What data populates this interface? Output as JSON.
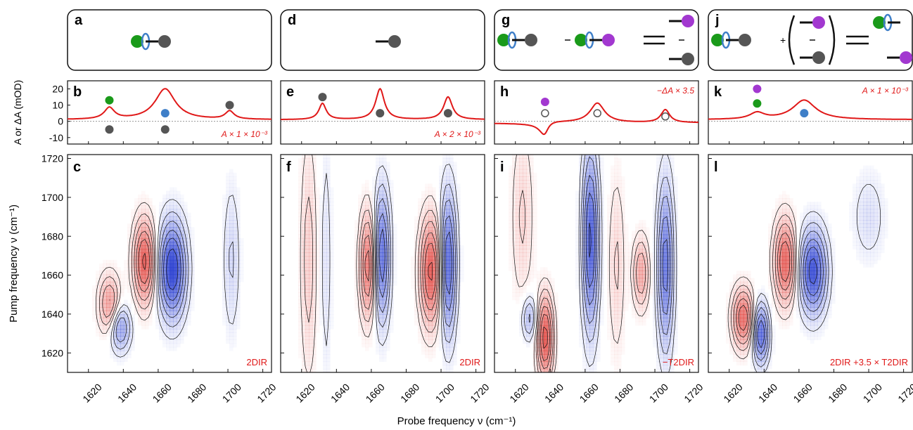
{
  "figure": {
    "x_axis_label": "Probe frequency ν (cm⁻¹)",
    "y_axis_label_top": "A or ΔA (mOD)",
    "y_axis_label_bottom": "Pump frequency ν (cm⁻¹)"
  },
  "colors": {
    "spectrum": "#e01818",
    "green": "#1a9a1a",
    "blue": "#3f7fc8",
    "purple": "#a238d0",
    "gray": "#555555",
    "ring": "#3f7fc8",
    "positive": "#e0403a",
    "negative": "#2a3fd0"
  },
  "panels": [
    {
      "col": 0,
      "schematic_letter": "a",
      "spectrum_letter": "b",
      "map_letter": "c",
      "schematic": "green-ring-gray",
      "spectrum_label": "A × 1 × 10⁻³",
      "map_label": "2DIR"
    },
    {
      "col": 1,
      "schematic_letter": "d",
      "spectrum_letter": "e",
      "map_letter": "f",
      "schematic": "gray",
      "spectrum_label": "A × 2 × 10⁻³",
      "map_label": "2DIR"
    },
    {
      "col": 2,
      "schematic_letter": "g",
      "spectrum_letter": "h",
      "map_letter": "i",
      "schematic": "difference",
      "spectrum_label": "−ΔA × 3.5",
      "map_label": "−T2DIR"
    },
    {
      "col": 3,
      "schematic_letter": "j",
      "spectrum_letter": "k",
      "map_letter": "l",
      "schematic": "sum",
      "spectrum_label": "A × 1 × 10⁻³",
      "map_label": "2DIR +3.5 × T2DIR"
    }
  ],
  "chart_data": [
    {
      "type": "line",
      "title": "",
      "xlabel": "Probe frequency ν (cm⁻¹)",
      "ylabel": "A or ΔA (mOD)",
      "xlim": [
        1608,
        1725
      ],
      "ylim": [
        -14,
        25
      ],
      "yticks": [
        -10,
        0,
        10,
        20
      ],
      "xticks": [
        1620,
        1640,
        1660,
        1680,
        1700,
        1720
      ],
      "series": [
        {
          "panel": "b",
          "peaks": [
            {
              "x": 1632,
              "amp": 7,
              "w": 3.5
            },
            {
              "x": 1664,
              "amp": 19,
              "w": 7
            },
            {
              "x": 1701,
              "amp": 5,
              "w": 3
            }
          ],
          "baseline": 1
        },
        {
          "panel": "e",
          "peaks": [
            {
              "x": 1632,
              "amp": 10,
              "w": 2.5
            },
            {
              "x": 1665,
              "amp": 19,
              "w": 3
            },
            {
              "x": 1704,
              "amp": 14,
              "w": 3
            }
          ],
          "baseline": 1
        },
        {
          "panel": "h",
          "peaks": [
            {
              "x": 1637,
              "amp": -7,
              "w": 3
            },
            {
              "x": 1667,
              "amp": 12,
              "w": 5
            },
            {
              "x": 1706,
              "amp": 8,
              "w": 3
            }
          ],
          "baseline": -1
        },
        {
          "panel": "k",
          "peaks": [
            {
              "x": 1636,
              "amp": 4,
              "w": 5
            },
            {
              "x": 1663,
              "amp": 12,
              "w": 8
            }
          ],
          "baseline": 1
        }
      ],
      "markers": [
        {
          "panel": "b",
          "dots": [
            {
              "x": 1632,
              "y": 13,
              "c": "green"
            },
            {
              "x": 1632,
              "y": -5,
              "c": "gray"
            },
            {
              "x": 1664,
              "y": 5,
              "c": "blue"
            },
            {
              "x": 1664,
              "y": -5,
              "c": "gray"
            },
            {
              "x": 1701,
              "y": 10,
              "c": "gray"
            }
          ]
        },
        {
          "panel": "e",
          "dots": [
            {
              "x": 1632,
              "y": 15,
              "c": "gray"
            },
            {
              "x": 1665,
              "y": 5,
              "c": "gray"
            },
            {
              "x": 1704,
              "y": 5,
              "c": "gray"
            }
          ]
        },
        {
          "panel": "h",
          "dots": [
            {
              "x": 1637,
              "y": 12,
              "c": "purple"
            },
            {
              "x": 1637,
              "y": 5,
              "c": "open"
            },
            {
              "x": 1667,
              "y": 5,
              "c": "open"
            },
            {
              "x": 1706,
              "y": 3,
              "c": "open"
            }
          ]
        },
        {
          "panel": "k",
          "dots": [
            {
              "x": 1636,
              "y": 20,
              "c": "purple"
            },
            {
              "x": 1636,
              "y": 11,
              "c": "green"
            },
            {
              "x": 1663,
              "y": 5,
              "c": "blue"
            }
          ]
        }
      ]
    },
    {
      "type": "heatmap",
      "title": "",
      "xlabel": "Probe frequency ν (cm⁻¹)",
      "ylabel": "Pump frequency ν (cm⁻¹)",
      "xlim": [
        1608,
        1725
      ],
      "ylim": [
        1610,
        1722
      ],
      "xticks": [
        1620,
        1640,
        1660,
        1680,
        1700,
        1720
      ],
      "yticks": [
        1620,
        1640,
        1660,
        1680,
        1700,
        1720
      ],
      "maps": [
        {
          "panel": "c",
          "blobs": [
            {
              "x": 1652,
              "y": 1667,
              "a": 0.85,
              "sx": 4,
              "sy": 14
            },
            {
              "x": 1668,
              "y": 1663,
              "a": -1.0,
              "sx": 5,
              "sy": 16
            },
            {
              "x": 1632,
              "y": 1645,
              "a": 0.5,
              "sx": 4,
              "sy": 10
            },
            {
              "x": 1638,
              "y": 1633,
              "a": -0.5,
              "sx": 4,
              "sy": 8
            },
            {
              "x": 1702,
              "y": 1668,
              "a": -0.2,
              "sx": 3,
              "sy": 25
            }
          ]
        },
        {
          "panel": "f",
          "blobs": [
            {
              "x": 1624,
              "y": 1668,
              "a": 0.25,
              "sx": 3,
              "sy": 40
            },
            {
              "x": 1634,
              "y": 1668,
              "a": -0.15,
              "sx": 2,
              "sy": 40
            },
            {
              "x": 1658,
              "y": 1665,
              "a": 0.7,
              "sx": 3,
              "sy": 18
            },
            {
              "x": 1666,
              "y": 1670,
              "a": -0.75,
              "sx": 3,
              "sy": 22
            },
            {
              "x": 1694,
              "y": 1662,
              "a": 0.85,
              "sx": 4,
              "sy": 18
            },
            {
              "x": 1704,
              "y": 1666,
              "a": -0.8,
              "sx": 3,
              "sy": 24
            }
          ]
        },
        {
          "panel": "i",
          "blobs": [
            {
              "x": 1637,
              "y": 1628,
              "a": 0.9,
              "sx": 3,
              "sy": 14
            },
            {
              "x": 1628,
              "y": 1638,
              "a": -0.35,
              "sx": 3,
              "sy": 8
            },
            {
              "x": 1624,
              "y": 1690,
              "a": 0.2,
              "sx": 4,
              "sy": 30
            },
            {
              "x": 1663,
              "y": 1678,
              "a": -0.85,
              "sx": 3,
              "sy": 30
            },
            {
              "x": 1678,
              "y": 1665,
              "a": 0.2,
              "sx": 3,
              "sy": 30
            },
            {
              "x": 1692,
              "y": 1661,
              "a": 0.45,
              "sx": 3,
              "sy": 12
            },
            {
              "x": 1706,
              "y": 1665,
              "a": -0.7,
              "sx": 3,
              "sy": 28
            }
          ]
        },
        {
          "panel": "l",
          "blobs": [
            {
              "x": 1628,
              "y": 1638,
              "a": 0.75,
              "sx": 4,
              "sy": 10
            },
            {
              "x": 1638,
              "y": 1630,
              "a": -0.8,
              "sx": 3,
              "sy": 10
            },
            {
              "x": 1652,
              "y": 1667,
              "a": 0.8,
              "sx": 4,
              "sy": 14
            },
            {
              "x": 1668,
              "y": 1662,
              "a": -0.9,
              "sx": 5,
              "sy": 14
            },
            {
              "x": 1700,
              "y": 1690,
              "a": -0.15,
              "sx": 6,
              "sy": 15
            }
          ]
        }
      ]
    }
  ]
}
